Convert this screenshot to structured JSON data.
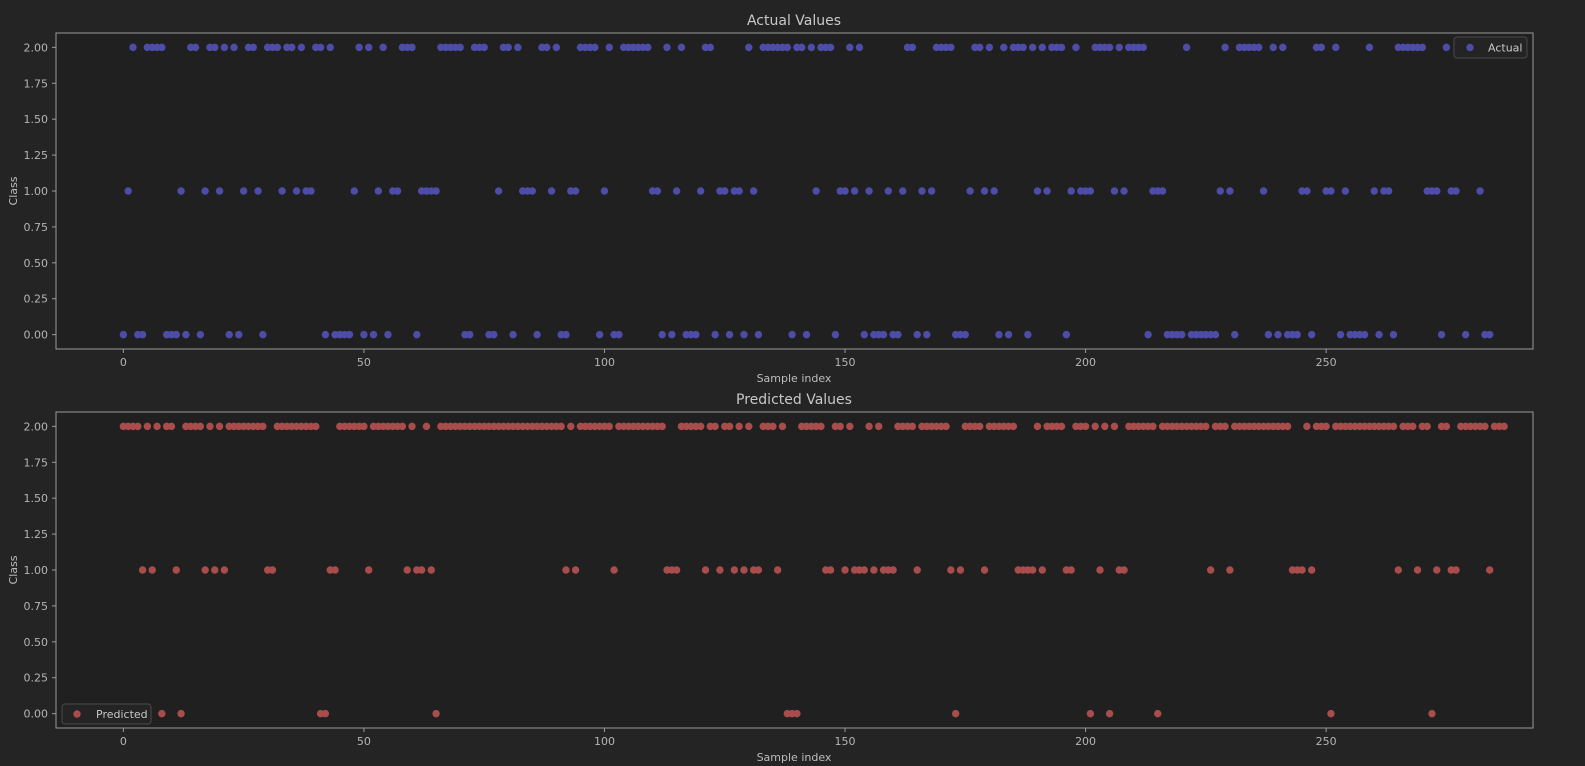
{
  "colors": {
    "figure_bg": "#242424",
    "axes_bg": "#202020",
    "frame": "#9a9a9a",
    "actual_marker": "#4d4da8",
    "predicted_marker": "#a84c4c"
  },
  "chart_data": [
    {
      "type": "scatter",
      "title": "Actual Values",
      "xlabel": "Sample index",
      "ylabel": "Class",
      "xlim": [
        -14,
        293
      ],
      "ylim": [
        -0.1,
        2.1
      ],
      "xticks": [
        0,
        50,
        100,
        150,
        200,
        250
      ],
      "yticks": [
        0.0,
        0.25,
        0.5,
        0.75,
        1.0,
        1.25,
        1.5,
        1.75,
        2.0
      ],
      "ytick_labels": [
        "0.00",
        "0.25",
        "0.50",
        "0.75",
        "1.00",
        "1.25",
        "1.50",
        "1.75",
        "2.00"
      ],
      "grid": false,
      "legend": "top-right",
      "series": [
        {
          "name": "Actual",
          "color": "#4d4da8",
          "y": [
            0,
            1,
            2,
            0,
            0,
            2,
            2,
            2,
            2,
            0,
            0,
            0,
            1,
            0,
            2,
            2,
            0,
            1,
            2,
            2,
            1,
            2,
            0,
            2,
            0,
            1,
            2,
            2,
            1,
            0,
            2,
            2,
            2,
            1,
            2,
            2,
            1,
            2,
            1,
            1,
            2,
            2,
            0,
            2,
            0,
            0,
            0,
            0,
            1,
            2,
            0,
            2,
            0,
            1,
            2,
            0,
            1,
            1,
            2,
            2,
            2,
            0,
            1,
            1,
            1,
            1,
            2,
            2,
            2,
            2,
            2,
            0,
            0,
            2,
            2,
            2,
            0,
            0,
            1,
            2,
            2,
            0,
            2,
            1,
            1,
            1,
            0,
            2,
            2,
            1,
            2,
            0,
            0,
            1,
            1,
            2,
            2,
            2,
            2,
            0,
            1,
            2,
            0,
            0,
            2,
            2,
            2,
            2,
            2,
            2,
            1,
            1,
            0,
            2,
            0,
            1,
            2,
            0,
            0,
            0,
            1,
            2,
            2,
            0,
            1,
            1,
            0,
            1,
            1,
            0,
            2,
            1,
            0,
            2,
            2,
            2,
            2,
            2,
            2,
            0,
            2,
            2,
            0,
            2,
            1,
            2,
            2,
            2,
            0,
            1,
            1,
            2,
            1,
            2,
            0,
            1,
            0,
            0,
            0,
            1,
            0,
            0,
            1,
            2,
            2,
            0,
            1,
            0,
            1,
            2,
            2,
            2,
            2,
            0,
            0,
            0,
            1,
            2,
            2,
            1,
            2,
            1,
            0,
            2,
            0,
            2,
            2,
            2,
            0,
            2,
            1,
            2,
            1,
            2,
            2,
            2,
            0,
            1,
            2,
            1,
            1,
            1,
            2,
            2,
            2,
            2,
            1,
            2,
            1,
            2,
            2,
            2,
            2,
            0,
            1,
            1,
            1,
            0,
            0,
            0,
            0,
            2,
            0,
            0,
            0,
            0,
            0,
            0,
            1,
            2,
            1,
            0,
            2,
            2,
            2,
            2,
            2,
            1,
            0,
            2,
            0,
            2,
            0,
            0,
            0,
            1,
            1,
            0,
            2,
            2,
            1,
            1,
            2,
            0,
            1,
            0,
            0,
            0,
            0,
            2,
            1,
            0,
            1,
            1,
            0,
            2,
            2,
            2,
            2,
            2,
            2,
            1,
            1,
            1,
            0,
            2,
            1,
            1,
            2,
            0,
            2,
            2,
            1,
            0,
            0
          ]
        }
      ]
    },
    {
      "type": "scatter",
      "title": "Predicted Values",
      "xlabel": "Sample index",
      "ylabel": "Class",
      "xlim": [
        -14,
        293
      ],
      "ylim": [
        -0.1,
        2.1
      ],
      "xticks": [
        0,
        50,
        100,
        150,
        200,
        250
      ],
      "yticks": [
        0.0,
        0.25,
        0.5,
        0.75,
        1.0,
        1.25,
        1.5,
        1.75,
        2.0
      ],
      "ytick_labels": [
        "0.00",
        "0.25",
        "0.50",
        "0.75",
        "1.00",
        "1.25",
        "1.50",
        "1.75",
        "2.00"
      ],
      "grid": false,
      "legend": "bottom-left",
      "series": [
        {
          "name": "Predicted",
          "color": "#a84c4c",
          "y": [
            2,
            2,
            2,
            2,
            1,
            2,
            1,
            2,
            0,
            2,
            2,
            1,
            0,
            2,
            2,
            2,
            2,
            1,
            2,
            1,
            2,
            1,
            2,
            2,
            2,
            2,
            2,
            2,
            2,
            2,
            1,
            1,
            2,
            2,
            2,
            2,
            2,
            2,
            2,
            2,
            2,
            0,
            0,
            1,
            1,
            2,
            2,
            2,
            2,
            2,
            2,
            1,
            2,
            2,
            2,
            2,
            2,
            2,
            2,
            1,
            2,
            1,
            1,
            2,
            1,
            0,
            2,
            2,
            2,
            2,
            2,
            2,
            2,
            2,
            2,
            2,
            2,
            2,
            2,
            2,
            2,
            2,
            2,
            2,
            2,
            2,
            2,
            2,
            2,
            2,
            2,
            2,
            1,
            2,
            1,
            2,
            2,
            2,
            2,
            2,
            2,
            2,
            1,
            2,
            2,
            2,
            2,
            2,
            2,
            2,
            2,
            2,
            2,
            1,
            1,
            1,
            2,
            2,
            2,
            2,
            2,
            1,
            2,
            2,
            1,
            2,
            2,
            1,
            2,
            1,
            2,
            1,
            1,
            2,
            2,
            2,
            1,
            2,
            0,
            0,
            0,
            2,
            2,
            2,
            2,
            2,
            1,
            1,
            2,
            2,
            1,
            2,
            1,
            1,
            1,
            2,
            1,
            2,
            1,
            1,
            1,
            2,
            2,
            2,
            2,
            1,
            2,
            2,
            2,
            2,
            2,
            2,
            1,
            0,
            1,
            2,
            2,
            2,
            2,
            1,
            2,
            2,
            2,
            2,
            2,
            2,
            1,
            1,
            1,
            1,
            2,
            1,
            2,
            2,
            2,
            2,
            1,
            1,
            2,
            2,
            2,
            0,
            2,
            1,
            2,
            0,
            2,
            1,
            1,
            2,
            2,
            2,
            2,
            2,
            2,
            0,
            2,
            2,
            2,
            2,
            2,
            2,
            2,
            2,
            2,
            2,
            1,
            2,
            2,
            2,
            1,
            2,
            2,
            2,
            2,
            2,
            2,
            2,
            2,
            2,
            2,
            2,
            2,
            1,
            1,
            1,
            2,
            1,
            2,
            2,
            2,
            0,
            2,
            2,
            2,
            2,
            2,
            2,
            2,
            2,
            2,
            2,
            2,
            2,
            2,
            1,
            2,
            2,
            2,
            1,
            2,
            2,
            0,
            1,
            2,
            2,
            1,
            1,
            2,
            2,
            2,
            2,
            2,
            2,
            1,
            2,
            2,
            2
          ]
        }
      ]
    }
  ]
}
